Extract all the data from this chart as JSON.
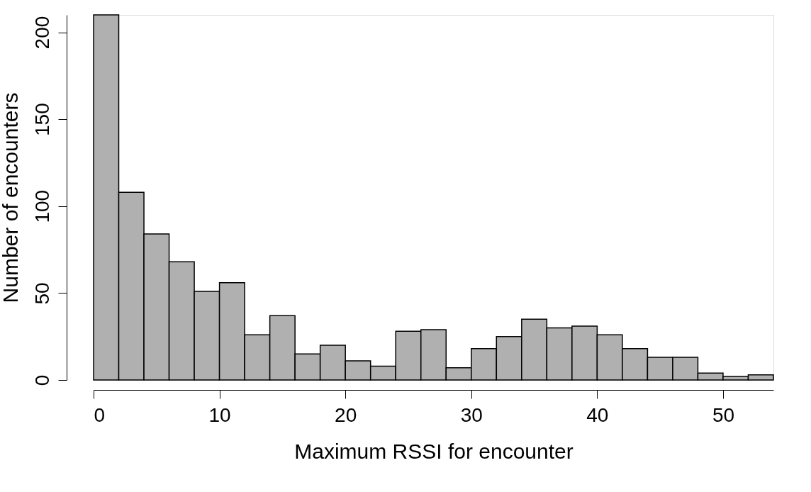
{
  "chart_data": {
    "type": "histogram",
    "xlabel": "Maximum RSSI for encounter",
    "ylabel": "Number of encounters",
    "bins": [
      0,
      2,
      4,
      6,
      8,
      10,
      12,
      14,
      16,
      18,
      20,
      22,
      24,
      26,
      28,
      30,
      32,
      34,
      36,
      38,
      40,
      42,
      44,
      46,
      48,
      50,
      52,
      54
    ],
    "values": [
      210,
      108,
      84,
      68,
      51,
      56,
      26,
      37,
      15,
      20,
      11,
      8,
      28,
      29,
      7,
      18,
      25,
      35,
      30,
      31,
      26,
      18,
      13,
      13,
      4,
      2,
      3
    ],
    "color": "#b0b0b0",
    "xlim": [
      0,
      54
    ],
    "xticks": [
      0,
      10,
      20,
      30,
      40,
      50
    ],
    "ylim": [
      0,
      210
    ],
    "yticks": [
      0,
      50,
      100,
      150,
      200
    ],
    "grid": false
  }
}
